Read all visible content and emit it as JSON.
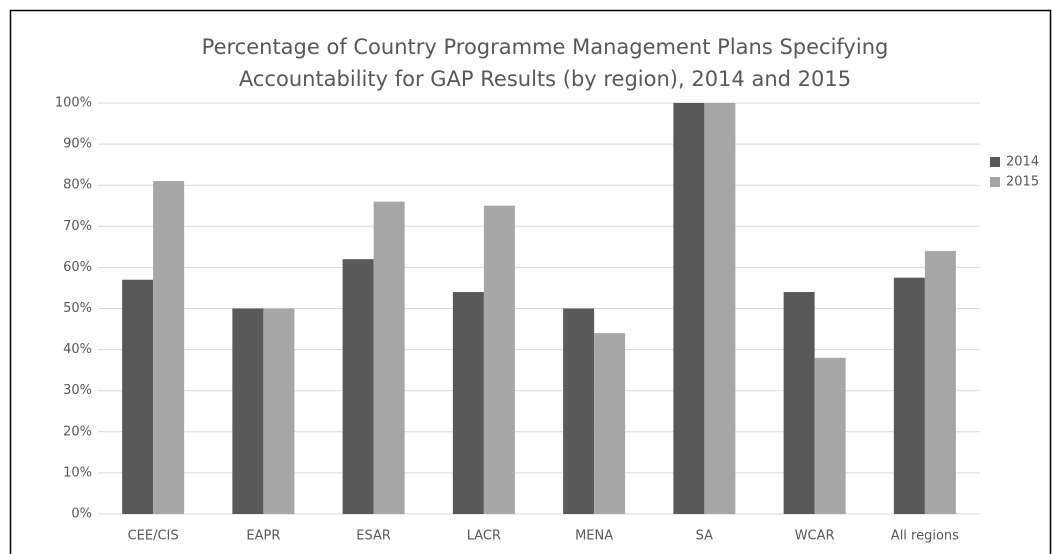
{
  "chart_data": {
    "type": "bar",
    "title": [
      "Percentage of Country Programme Management Plans Specifying",
      "Accountability for GAP Results (by region), 2014 and 2015"
    ],
    "categories": [
      "CEE/CIS",
      "EAPR",
      "ESAR",
      "LACR",
      "MENA",
      "SA",
      "WCAR",
      "All regions"
    ],
    "series": [
      {
        "name": "2014",
        "color": "#595959",
        "values": [
          57,
          50,
          62,
          54,
          50,
          100,
          54,
          57.5
        ]
      },
      {
        "name": "2015",
        "color": "#a6a6a6",
        "values": [
          81,
          50,
          76,
          75,
          44,
          100,
          38,
          64
        ]
      }
    ],
    "ylim": [
      0,
      100
    ],
    "yticks": [
      {
        "value": 0,
        "label": "0%"
      },
      {
        "value": 10,
        "label": "10%"
      },
      {
        "value": 20,
        "label": "20%"
      },
      {
        "value": 30,
        "label": "30%"
      },
      {
        "value": 40,
        "label": "40%"
      },
      {
        "value": 50,
        "label": "50%"
      },
      {
        "value": 60,
        "label": "60%"
      },
      {
        "value": 70,
        "label": "70%"
      },
      {
        "value": 80,
        "label": "80%"
      },
      {
        "value": 90,
        "label": "90%"
      },
      {
        "value": 100,
        "label": "100%"
      }
    ],
    "grid": true,
    "legend": "right"
  }
}
